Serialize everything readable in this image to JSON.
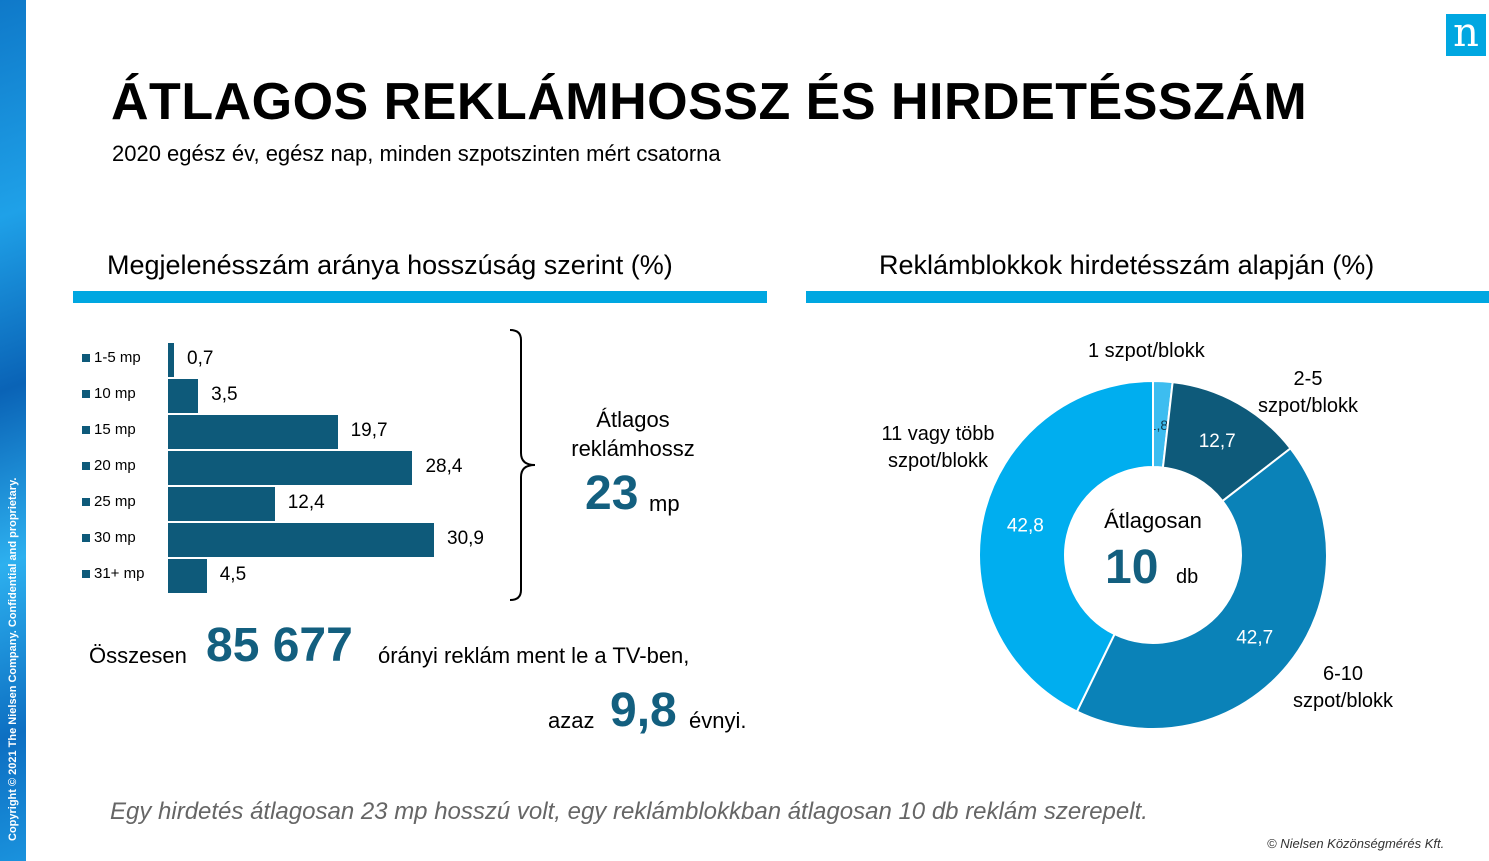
{
  "header": {
    "title": "ÁTLAGOS REKLÁMHOSSZ ÉS HIRDETÉSSZÁM",
    "subtitle": "2020 egész év, egész nap, minden szpotszinten mért csatorna",
    "logo": "n"
  },
  "side_strip": {
    "copyright": "Copyright © 2021 The Nielsen Company. Confidential and proprietary."
  },
  "left_panel": {
    "section_title": "Megjelenésszám aránya hosszúság szerint (%)",
    "avg_label": "Átlagos reklámhossz",
    "avg_value": "23",
    "avg_unit": "mp",
    "total_pre": "Összesen",
    "total_value": "85 677",
    "total_post": "órányi reklám ment le a TV-ben,",
    "years_pre": "azaz",
    "years_value": "9,8",
    "years_post": "évnyi."
  },
  "right_panel": {
    "section_title": "Reklámblokkok hirdetésszám alapján (%)",
    "center_label": "Átlagosan",
    "center_value": "10",
    "center_unit": "db"
  },
  "chart_data": [
    {
      "type": "bar",
      "orientation": "horizontal",
      "categories": [
        "1-5 mp",
        "10 mp",
        "15 mp",
        "20 mp",
        "25 mp",
        "30 mp",
        "31+ mp"
      ],
      "values": [
        0.7,
        3.5,
        19.7,
        28.4,
        12.4,
        30.9,
        4.5
      ],
      "value_labels": [
        "0,7",
        "3,5",
        "19,7",
        "28,4",
        "12,4",
        "30,9",
        "4,5"
      ],
      "color": "#0e5a7a",
      "legend": "left"
    },
    {
      "type": "pie",
      "subtype": "donut",
      "categories": [
        "1 szpot/blokk",
        "2-5 szpot/blokk",
        "6-10 szpot/blokk",
        "11 vagy több szpot/blokk"
      ],
      "values": [
        1.8,
        12.7,
        42.7,
        42.8
      ],
      "value_labels": [
        "1,8",
        "12,7",
        "42,7",
        "42,8"
      ],
      "colors": [
        "#3dbdf0",
        "#0e5a7a",
        "#0a82b8",
        "#00aeef"
      ]
    }
  ],
  "footer": {
    "note": "Egy hirdetés átlagosan 23 mp hosszú volt, egy reklámblokkban átlagosan 10 db reklám szerepelt.",
    "source": "© Nielsen Közönségmérés Kft."
  }
}
